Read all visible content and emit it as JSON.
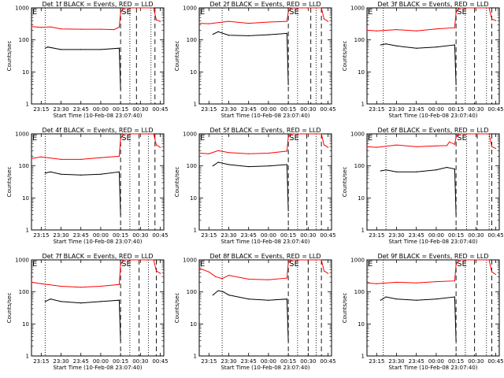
{
  "chart_data": [
    {
      "type": "line",
      "title": "Det 1f BLACK = Events, RED = LLD",
      "xlabel": "Start Time (10-Feb-08 23:07:40)",
      "ylabel": "Counts/sec",
      "yscale": "log",
      "ylim": [
        1,
        1000
      ],
      "yticks": [
        "1",
        "10",
        "100",
        "1000"
      ],
      "xticks": [
        "23:15",
        "23:30",
        "23:45",
        "00:00",
        "00:15",
        "00:30",
        "00:45"
      ],
      "corner_labels": [
        "E",
        "SE"
      ],
      "series": [
        {
          "color": "#ff0000",
          "x": [
            "23:07:40",
            "23:15",
            "23:22",
            "23:30",
            "23:45",
            "00:00",
            "00:10",
            "00:14",
            "00:15",
            "00:17",
            "00:30",
            "00:40",
            "00:42",
            "00:45"
          ],
          "values": [
            260,
            245,
            255,
            220,
            215,
            215,
            210,
            250,
            700,
            1000,
            1000,
            1000,
            420,
            380
          ]
        },
        {
          "color": "#000000",
          "x": [
            "23:18",
            "23:20",
            "23:30",
            "23:45",
            "00:00",
            "00:14",
            "00:15"
          ],
          "values": [
            55,
            60,
            50,
            50,
            50,
            55,
            3
          ]
        }
      ],
      "vlines": [
        {
          "x": "23:18",
          "style": "dotted"
        },
        {
          "x": "00:15",
          "style": "dashed"
        },
        {
          "x": "00:22",
          "style": "dotted"
        },
        {
          "x": "00:27",
          "style": "dashed"
        },
        {
          "x": "00:38",
          "style": "dotted"
        },
        {
          "x": "00:41",
          "style": "dashed"
        }
      ]
    },
    {
      "type": "line",
      "title": "Det 2f BLACK = Events, RED = LLD",
      "xlabel": "Start Time (10-Feb-08 23:07:40)",
      "ylabel": "Counts/sec",
      "yscale": "log",
      "ylim": [
        1,
        1000
      ],
      "yticks": [
        "1",
        "10",
        "100",
        "1000"
      ],
      "xticks": [
        "23:15",
        "23:30",
        "23:45",
        "00:00",
        "00:15",
        "00:30",
        "00:45"
      ],
      "corner_labels": [
        "E",
        "SE"
      ],
      "series": [
        {
          "color": "#ff0000",
          "x": [
            "23:07:40",
            "23:15",
            "23:30",
            "23:45",
            "00:00",
            "00:14",
            "00:15",
            "00:17",
            "00:30",
            "00:40",
            "00:42",
            "00:45"
          ],
          "values": [
            330,
            320,
            380,
            330,
            360,
            380,
            750,
            1000,
            1000,
            1000,
            450,
            380
          ]
        },
        {
          "color": "#000000",
          "x": [
            "23:18",
            "23:22",
            "23:30",
            "23:45",
            "00:00",
            "00:14",
            "00:15"
          ],
          "values": [
            150,
            180,
            140,
            135,
            145,
            160,
            4
          ]
        }
      ],
      "vlines": [
        {
          "x": "23:25",
          "style": "dotted"
        },
        {
          "x": "00:15",
          "style": "dashed"
        },
        {
          "x": "00:22",
          "style": "dotted"
        },
        {
          "x": "00:32",
          "style": "dashed"
        },
        {
          "x": "00:36",
          "style": "dotted"
        },
        {
          "x": "00:40",
          "style": "dashed"
        }
      ]
    },
    {
      "type": "line",
      "title": "Det 3f BLACK = Events, RED = LLD",
      "xlabel": "Start Time (10-Feb-08 23:07:40)",
      "ylabel": "Counts/sec",
      "yscale": "log",
      "ylim": [
        1,
        1000
      ],
      "yticks": [
        "1",
        "10",
        "100",
        "1000"
      ],
      "xticks": [
        "23:15",
        "23:30",
        "23:45",
        "00:00",
        "00:15",
        "00:30",
        "00:45"
      ],
      "corner_labels": [
        "E",
        "SE"
      ],
      "series": [
        {
          "color": "#ff0000",
          "x": [
            "23:07:40",
            "23:15",
            "23:30",
            "23:45",
            "00:00",
            "00:14",
            "00:15",
            "00:17",
            "00:30",
            "00:40",
            "00:42",
            "00:45"
          ],
          "values": [
            200,
            190,
            210,
            190,
            220,
            240,
            700,
            1000,
            1000,
            1000,
            450,
            400
          ]
        },
        {
          "color": "#000000",
          "x": [
            "23:18",
            "23:22",
            "23:30",
            "23:45",
            "00:00",
            "00:14",
            "00:15"
          ],
          "values": [
            70,
            75,
            65,
            55,
            60,
            70,
            4
          ]
        }
      ],
      "vlines": [
        {
          "x": "23:20",
          "style": "dotted"
        },
        {
          "x": "00:15",
          "style": "dashed"
        },
        {
          "x": "00:22",
          "style": "dotted"
        },
        {
          "x": "00:29",
          "style": "dashed"
        },
        {
          "x": "00:38",
          "style": "dotted"
        },
        {
          "x": "00:42",
          "style": "dashed"
        }
      ]
    },
    {
      "type": "line",
      "title": "Det 4f BLACK = Events, RED = LLD",
      "xlabel": "Start Time (10-Feb-08 23:07:40)",
      "ylabel": "Counts/sec",
      "yscale": "log",
      "ylim": [
        1,
        1000
      ],
      "yticks": [
        "1",
        "10",
        "100",
        "1000"
      ],
      "xticks": [
        "23:15",
        "23:30",
        "23:45",
        "00:00",
        "00:15",
        "00:30",
        "00:45"
      ],
      "corner_labels": [
        "E",
        "SE"
      ],
      "series": [
        {
          "color": "#ff0000",
          "x": [
            "23:07:40",
            "23:15",
            "23:30",
            "23:45",
            "00:00",
            "00:14",
            "00:15",
            "00:17",
            "00:30",
            "00:40",
            "00:42",
            "00:45"
          ],
          "values": [
            170,
            190,
            160,
            160,
            180,
            200,
            700,
            1000,
            1000,
            1000,
            450,
            380
          ]
        },
        {
          "color": "#000000",
          "x": [
            "23:18",
            "23:22",
            "23:30",
            "23:45",
            "00:00",
            "00:14",
            "00:15"
          ],
          "values": [
            60,
            65,
            55,
            52,
            55,
            65,
            3
          ]
        }
      ],
      "vlines": [
        {
          "x": "23:18",
          "style": "dotted"
        },
        {
          "x": "00:15",
          "style": "dashed"
        },
        {
          "x": "00:22",
          "style": "dotted"
        },
        {
          "x": "00:29",
          "style": "dashed"
        },
        {
          "x": "00:36",
          "style": "dotted"
        },
        {
          "x": "00:41",
          "style": "dashed"
        }
      ]
    },
    {
      "type": "line",
      "title": "Det 5f BLACK = Events, RED = LLD",
      "xlabel": "Start Time (10-Feb-08 23:07:40)",
      "ylabel": "Counts/sec",
      "yscale": "log",
      "ylim": [
        1,
        1000
      ],
      "yticks": [
        "1",
        "10",
        "100",
        "1000"
      ],
      "xticks": [
        "23:15",
        "23:30",
        "23:45",
        "00:00",
        "00:15",
        "00:30",
        "00:45"
      ],
      "corner_labels": [
        "E",
        "SE"
      ],
      "series": [
        {
          "color": "#ff0000",
          "x": [
            "23:07:40",
            "23:15",
            "23:22",
            "23:30",
            "23:45",
            "00:00",
            "00:14",
            "00:15",
            "00:17",
            "00:30",
            "00:40",
            "00:42",
            "00:45"
          ],
          "values": [
            250,
            240,
            300,
            260,
            240,
            250,
            290,
            800,
            1000,
            1000,
            1000,
            450,
            380
          ]
        },
        {
          "color": "#000000",
          "x": [
            "23:18",
            "23:22",
            "23:30",
            "23:45",
            "00:00",
            "00:14",
            "00:15"
          ],
          "values": [
            100,
            130,
            110,
            95,
            100,
            110,
            4
          ]
        }
      ],
      "vlines": [
        {
          "x": "23:25",
          "style": "dotted"
        },
        {
          "x": "00:15",
          "style": "dashed"
        },
        {
          "x": "00:22",
          "style": "dotted"
        },
        {
          "x": "00:29",
          "style": "dashed"
        },
        {
          "x": "00:36",
          "style": "dotted"
        },
        {
          "x": "00:40",
          "style": "dashed"
        }
      ]
    },
    {
      "type": "line",
      "title": "Det 6f BLACK = Events, RED = LLD",
      "xlabel": "Start Time (10-Feb-08 23:07:40)",
      "ylabel": "Counts/sec",
      "yscale": "log",
      "ylim": [
        1,
        1000
      ],
      "yticks": [
        "1",
        "10",
        "100",
        "1000"
      ],
      "xticks": [
        "23:15",
        "23:30",
        "23:45",
        "00:00",
        "00:15",
        "00:30",
        "00:45"
      ],
      "corner_labels": [
        "E",
        "SE"
      ],
      "series": [
        {
          "color": "#ff0000",
          "x": [
            "23:07:40",
            "23:15",
            "23:30",
            "23:45",
            "00:00",
            "00:08",
            "00:10",
            "00:14",
            "00:15",
            "00:17",
            "00:30",
            "00:40",
            "00:42",
            "00:45"
          ],
          "values": [
            400,
            380,
            450,
            400,
            420,
            430,
            560,
            470,
            800,
            1000,
            1000,
            1000,
            400,
            350
          ]
        },
        {
          "color": "#000000",
          "x": [
            "23:18",
            "23:22",
            "23:30",
            "23:45",
            "00:00",
            "00:08",
            "00:14",
            "00:15"
          ],
          "values": [
            70,
            75,
            65,
            65,
            75,
            90,
            80,
            3
          ]
        }
      ],
      "vlines": [
        {
          "x": "23:22",
          "style": "dotted"
        },
        {
          "x": "00:15",
          "style": "dashed"
        },
        {
          "x": "00:23",
          "style": "dotted"
        },
        {
          "x": "00:31",
          "style": "dashed"
        },
        {
          "x": "00:40",
          "style": "dotted"
        },
        {
          "x": "00:42",
          "style": "dashed"
        }
      ]
    },
    {
      "type": "line",
      "title": "Det 7f BLACK = Events, RED = LLD",
      "xlabel": "Start Time (10-Feb-08 23:07:40)",
      "ylabel": "Counts/sec",
      "yscale": "log",
      "ylim": [
        1,
        1000
      ],
      "yticks": [
        "1",
        "10",
        "100",
        "1000"
      ],
      "xticks": [
        "23:15",
        "23:30",
        "23:45",
        "00:00",
        "00:15",
        "00:30",
        "00:45"
      ],
      "corner_labels": [
        "E",
        "SE"
      ],
      "series": [
        {
          "color": "#ff0000",
          "x": [
            "23:07:40",
            "23:15",
            "23:30",
            "23:45",
            "00:00",
            "00:14",
            "00:15",
            "00:17",
            "00:30",
            "00:40",
            "00:42",
            "00:45"
          ],
          "values": [
            200,
            180,
            150,
            140,
            150,
            170,
            700,
            1000,
            1000,
            1000,
            450,
            380
          ]
        },
        {
          "color": "#000000",
          "x": [
            "23:18",
            "23:22",
            "23:30",
            "23:45",
            "00:00",
            "00:14",
            "00:15"
          ],
          "values": [
            50,
            60,
            50,
            45,
            50,
            55,
            3
          ]
        }
      ],
      "vlines": [
        {
          "x": "23:18",
          "style": "dotted"
        },
        {
          "x": "00:15",
          "style": "dashed"
        },
        {
          "x": "00:22",
          "style": "dotted"
        },
        {
          "x": "00:29",
          "style": "dashed"
        },
        {
          "x": "00:36",
          "style": "dotted"
        },
        {
          "x": "00:42",
          "style": "dashed"
        }
      ]
    },
    {
      "type": "line",
      "title": "Det 8f BLACK = Events, RED = LLD",
      "xlabel": "Start Time (10-Feb-08 23:07:40)",
      "ylabel": "Counts/sec",
      "yscale": "log",
      "ylim": [
        1,
        1000
      ],
      "yticks": [
        "1",
        "10",
        "100",
        "1000"
      ],
      "xticks": [
        "23:15",
        "23:30",
        "23:45",
        "00:00",
        "00:15",
        "00:30",
        "00:45"
      ],
      "corner_labels": [
        "E",
        "SE"
      ],
      "series": [
        {
          "color": "#ff0000",
          "x": [
            "23:07:40",
            "23:15",
            "23:20",
            "23:25",
            "23:30",
            "23:45",
            "00:00",
            "00:14",
            "00:15",
            "00:17",
            "00:30",
            "00:40",
            "00:42",
            "00:45"
          ],
          "values": [
            550,
            420,
            300,
            260,
            330,
            250,
            240,
            270,
            800,
            1000,
            1000,
            1000,
            450,
            380
          ]
        },
        {
          "color": "#000000",
          "x": [
            "23:18",
            "23:22",
            "23:26",
            "23:30",
            "23:45",
            "00:00",
            "00:14",
            "00:15"
          ],
          "values": [
            80,
            110,
            100,
            80,
            60,
            55,
            60,
            3
          ]
        }
      ],
      "vlines": [
        {
          "x": "23:25",
          "style": "dotted"
        },
        {
          "x": "00:15",
          "style": "dashed"
        },
        {
          "x": "00:22",
          "style": "dotted"
        },
        {
          "x": "00:30",
          "style": "dashed"
        },
        {
          "x": "00:36",
          "style": "dotted"
        },
        {
          "x": "00:40",
          "style": "dashed"
        }
      ]
    },
    {
      "type": "line",
      "title": "Det 9f BLACK = Events, RED = LLD",
      "xlabel": "Start Time (10-Feb-08 23:07:40)",
      "ylabel": "Counts/sec",
      "yscale": "log",
      "ylim": [
        1,
        1000
      ],
      "yticks": [
        "1",
        "10",
        "100",
        "1000"
      ],
      "xticks": [
        "23:15",
        "23:30",
        "23:45",
        "00:00",
        "00:15",
        "00:30",
        "00:45"
      ],
      "corner_labels": [
        "E",
        "SE"
      ],
      "series": [
        {
          "color": "#ff0000",
          "x": [
            "23:07:40",
            "23:15",
            "23:30",
            "23:45",
            "00:00",
            "00:14",
            "00:15",
            "00:17",
            "00:30",
            "00:40",
            "00:42",
            "00:45"
          ],
          "values": [
            190,
            180,
            200,
            190,
            210,
            220,
            700,
            1000,
            1000,
            1000,
            420,
            350
          ]
        },
        {
          "color": "#000000",
          "x": [
            "23:18",
            "23:22",
            "23:30",
            "23:45",
            "00:00",
            "00:14",
            "00:15"
          ],
          "values": [
            55,
            70,
            60,
            55,
            60,
            70,
            3
          ]
        }
      ],
      "vlines": [
        {
          "x": "23:20",
          "style": "dotted"
        },
        {
          "x": "00:15",
          "style": "dashed"
        },
        {
          "x": "00:22",
          "style": "dotted"
        },
        {
          "x": "00:29",
          "style": "dashed"
        },
        {
          "x": "00:38",
          "style": "dotted"
        },
        {
          "x": "00:42",
          "style": "dashed"
        }
      ]
    }
  ]
}
